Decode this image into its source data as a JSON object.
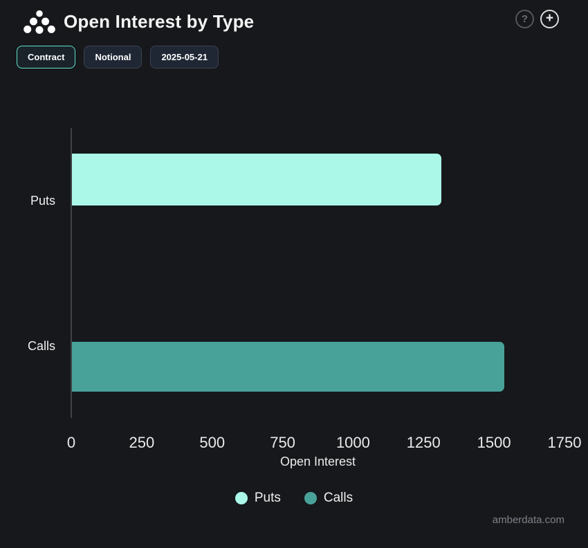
{
  "header": {
    "title": "Open Interest by Type",
    "help_label": "?",
    "add_label": "+"
  },
  "toggles": [
    {
      "label": "Contract",
      "active": true
    },
    {
      "label": "Notional",
      "active": false
    },
    {
      "label": "2025-05-21",
      "active": false
    }
  ],
  "watermark": "amberdata.com",
  "colors": {
    "background": "#16181b",
    "accent_mint": "#5fe3c8",
    "puts": "#abf8e9",
    "calls": "#49a29a",
    "axis_line": "#3f4348"
  },
  "chart_data": {
    "type": "bar",
    "orientation": "horizontal",
    "title": "Open Interest by Type",
    "categories": [
      "Puts",
      "Calls"
    ],
    "series": [
      {
        "name": "Puts",
        "color": "#abf8e9",
        "values": [
          1310,
          null
        ]
      },
      {
        "name": "Calls",
        "color": "#49a29a",
        "values": [
          null,
          1535
        ]
      }
    ],
    "xlabel": "Open Interest",
    "ylabel": "",
    "xlim": [
      0,
      1750
    ],
    "xticks": [
      0,
      250,
      500,
      750,
      1000,
      1250,
      1500,
      1750
    ],
    "grid": false,
    "legend": [
      "Puts",
      "Calls"
    ],
    "legend_position": "bottom"
  }
}
